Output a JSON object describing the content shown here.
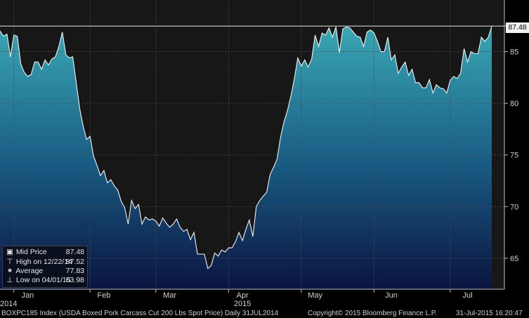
{
  "chart_data": {
    "type": "area",
    "ylim": [
      62,
      90
    ],
    "yticks": [
      65,
      70,
      75,
      80,
      85
    ],
    "year_labels": [
      "2014",
      "2015"
    ],
    "month_labels": [
      "Jan",
      "Feb",
      "Mar",
      "Apr",
      "May",
      "Jun",
      "Jul"
    ],
    "last_value_label": "87.48",
    "colors": {
      "fill_top": "#3aa7b4",
      "fill_bottom": "#0a1440",
      "line": "#f2f2f2",
      "background": "#171717"
    },
    "series": [
      {
        "values": [
          87.0,
          86.5,
          86.7,
          84.5,
          86.6,
          86.5,
          83.8,
          83.0,
          82.6,
          82.8,
          84.0,
          84.0,
          83.3,
          84.2,
          83.7,
          84.3,
          84.5,
          85.5,
          86.9,
          84.7,
          84.4,
          84.5,
          82.0,
          79.5,
          77.8,
          76.5,
          76.8,
          74.9,
          74.0,
          73.0,
          73.5,
          72.3,
          72.6,
          72.0,
          71.6,
          70.5,
          69.9,
          68.3,
          70.6,
          69.8,
          70.2,
          68.3,
          69.0,
          68.7,
          68.8,
          68.6,
          68.1,
          68.9,
          68.4,
          68.0,
          68.3,
          68.8,
          68.0,
          67.6,
          67.8,
          66.8,
          67.5,
          65.4,
          65.4,
          65.4,
          64.0,
          64.3,
          65.5,
          65.2,
          65.8,
          65.6,
          66.0,
          66.0,
          66.6,
          67.5,
          66.7,
          67.8,
          68.7,
          67.1,
          70.0,
          70.6,
          71.0,
          71.4,
          73.1,
          73.8,
          74.6,
          76.7,
          78.2,
          79.3,
          80.7,
          82.4,
          84.4,
          83.6,
          84.2,
          83.5,
          84.3,
          86.6,
          85.5,
          86.8,
          86.6,
          87.3,
          86.4,
          87.4,
          84.9,
          87.2,
          87.4,
          87.3,
          86.9,
          86.5,
          86.4,
          85.5,
          86.9,
          87.1,
          86.8,
          86.0,
          85.0,
          85.0,
          86.4,
          84.2,
          84.7,
          82.9,
          83.5,
          84.0,
          82.7,
          83.3,
          82.0,
          82.0,
          81.5,
          81.5,
          82.3,
          81.0,
          81.8,
          81.5,
          81.4,
          81.0,
          82.2,
          82.6,
          82.4,
          82.9,
          85.3,
          84.0,
          85.0,
          84.8,
          84.8,
          86.4,
          86.0,
          86.4,
          87.48
        ],
        "fill": "area"
      }
    ],
    "legend": {
      "title": "Mid Price",
      "title_value": "87.48",
      "high_label": "High on 12/22/14",
      "high_value": "87.52",
      "avg_label": "Average",
      "avg_value": "77.83",
      "low_label": "Low on 04/01/15",
      "low_value": "63.98"
    },
    "footer": {
      "left": "BOXPC185 Index (USDA Boxed Pork Carcass Cut 200 Lbs Spot Price)  Daily 31JUL2014",
      "mid": "Copyright© 2015 Bloomberg Finance L.P.",
      "right": "31-Jul-2015 16:20:47"
    }
  }
}
